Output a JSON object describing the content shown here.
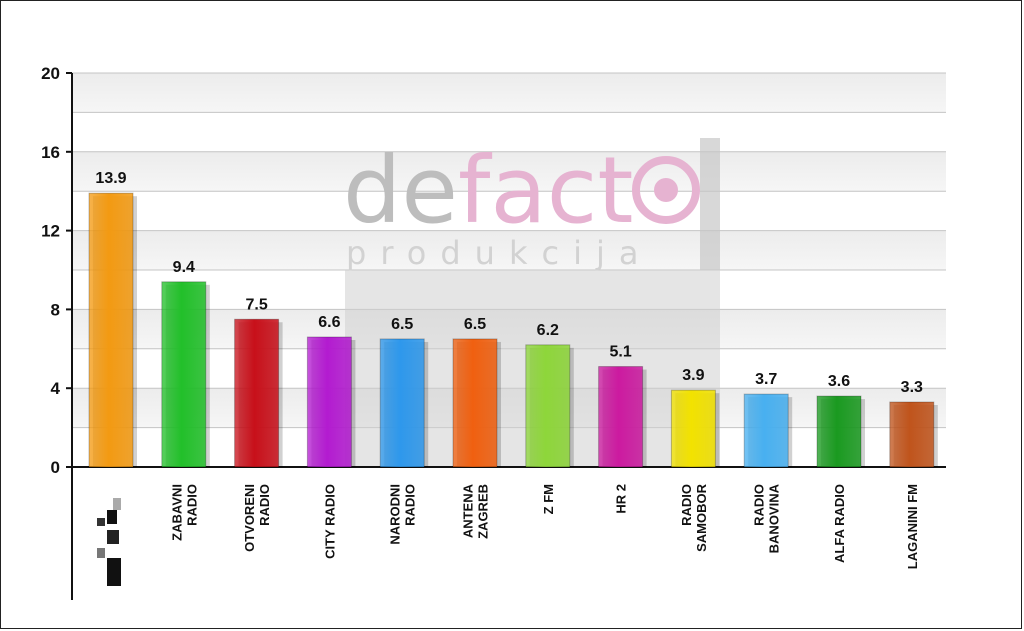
{
  "watermark": {
    "text_a": "de",
    "text_b": "fact",
    "text_c": "o",
    "subtitle": "produkcija"
  },
  "chart_data": {
    "type": "bar",
    "categories": [
      "",
      "ZABAVNI RADIO",
      "OTVORENI RADIO",
      "CITY RADIO",
      "NARODNI RADIO",
      "ANTENA ZAGREB",
      "Z FM",
      "HR 2",
      "RADIO SAMOBOR",
      "RADIO BANOVINA",
      "ALFA RADIO",
      "LAGANINI FM"
    ],
    "category_lines": [
      [],
      [
        "ZABAVNI",
        "RADIO"
      ],
      [
        "OTVORENI",
        "RADIO"
      ],
      [
        "CITY RADIO"
      ],
      [
        "NARODNI",
        "RADIO"
      ],
      [
        "ANTENA",
        "ZAGREB"
      ],
      [
        "Z FM"
      ],
      [
        "HR 2"
      ],
      [
        "RADIO",
        "SAMOBOR"
      ],
      [
        "RADIO",
        "BANOVINA"
      ],
      [
        "ALFA RADIO"
      ],
      [
        "LAGANINI FM"
      ]
    ],
    "values": [
      13.9,
      9.4,
      7.5,
      6.6,
      6.5,
      6.5,
      6.2,
      5.1,
      3.9,
      3.7,
      3.6,
      3.3
    ],
    "colors": [
      "#f39a12",
      "#22c02a",
      "#c8101a",
      "#b31bd0",
      "#2e98ec",
      "#f06010",
      "#8ed63a",
      "#cc1aa0",
      "#f2e200",
      "#48b0f0",
      "#1a9a20",
      "#c0541c"
    ],
    "yticks": [
      0,
      4,
      8,
      12,
      16,
      20
    ],
    "ylim": [
      0,
      20
    ],
    "grid": true,
    "title": "",
    "xlabel": "",
    "ylabel": ""
  }
}
